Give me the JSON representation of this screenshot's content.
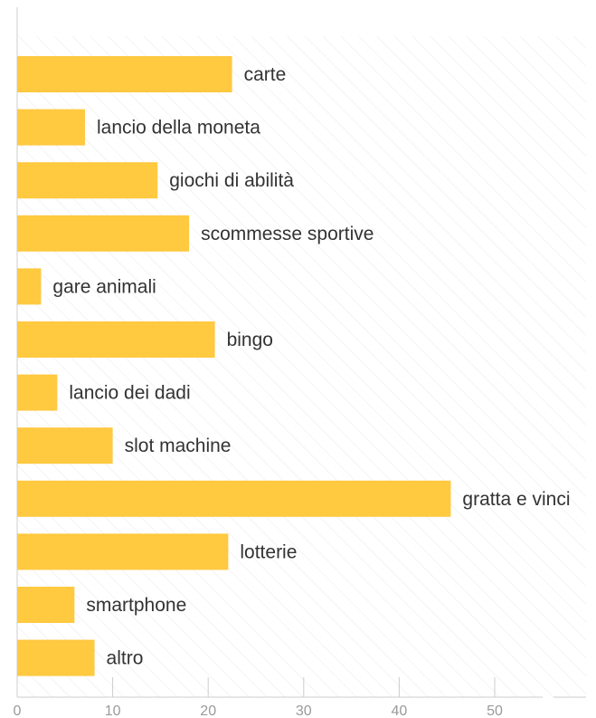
{
  "chart_data": {
    "type": "bar",
    "orientation": "horizontal",
    "title": "",
    "xlabel": "",
    "ylabel": "",
    "categories": [
      "carte",
      "lancio della moneta",
      "giochi di abilità",
      "scommesse sportive",
      "gare animali",
      "bingo",
      "lancio dei dadi",
      "slot machine",
      "gratta e vinci",
      "lotterie",
      "smartphone",
      "altro"
    ],
    "values": [
      22.5,
      7.1,
      14.7,
      18.0,
      2.5,
      20.7,
      4.2,
      10.0,
      45.4,
      22.1,
      6.0,
      8.1
    ],
    "xlim": [
      0,
      60
    ],
    "xticks": [
      0,
      10,
      20,
      30,
      40,
      50
    ],
    "tick_labels": [
      "0",
      "10",
      "20",
      "30",
      "40",
      "50"
    ],
    "grid": false,
    "legend": "none",
    "colors": {
      "bar": "#ffc940",
      "background_hatch": "#ececec",
      "axis": "#cccccc",
      "tick_text": "#9a9a9a",
      "label_text": "#333333"
    }
  }
}
